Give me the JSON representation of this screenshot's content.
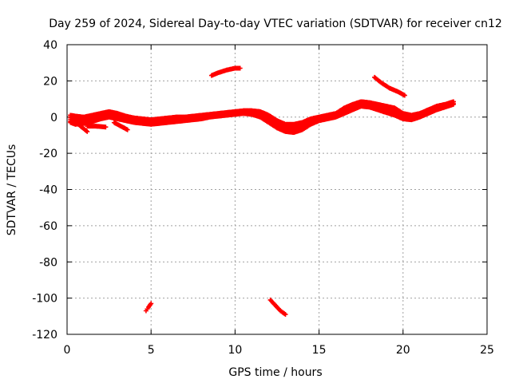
{
  "chart_data": {
    "type": "scatter",
    "title": "Day 259 of 2024, Sidereal Day-to-day VTEC variation (SDTVAR) for receiver cn12",
    "xlabel": "GPS time / hours",
    "ylabel": "SDTVAR / TECUs",
    "xlim": [
      0,
      25
    ],
    "ylim": [
      -120,
      40
    ],
    "xticks": [
      0,
      5,
      10,
      15,
      20,
      25
    ],
    "yticks": [
      -120,
      -100,
      -80,
      -60,
      -40,
      -20,
      0,
      20,
      40
    ],
    "grid": true,
    "marker": "plus",
    "color": "#ff0000",
    "series": [
      {
        "name": "main band upper",
        "points": [
          [
            0.2,
            1
          ],
          [
            0.5,
            0.5
          ],
          [
            1.0,
            0
          ],
          [
            1.5,
            1
          ],
          [
            2.0,
            2
          ],
          [
            2.5,
            3
          ],
          [
            3.0,
            2
          ],
          [
            3.5,
            0.5
          ],
          [
            4.0,
            -0.5
          ],
          [
            4.5,
            -1
          ],
          [
            5.0,
            -1.5
          ],
          [
            5.5,
            -1
          ],
          [
            6.0,
            -0.5
          ],
          [
            6.5,
            0
          ],
          [
            7.0,
            0
          ],
          [
            7.5,
            0.5
          ],
          [
            8.0,
            1
          ],
          [
            8.5,
            1.5
          ],
          [
            9.0,
            2
          ],
          [
            9.5,
            2.5
          ],
          [
            10.0,
            3
          ],
          [
            10.5,
            3.5
          ],
          [
            11.0,
            3.5
          ],
          [
            11.5,
            3
          ],
          [
            12.0,
            1
          ],
          [
            12.5,
            -2
          ],
          [
            13.0,
            -4
          ],
          [
            13.5,
            -4
          ],
          [
            14.0,
            -3
          ],
          [
            14.5,
            -1
          ],
          [
            15.0,
            0
          ],
          [
            15.5,
            1
          ],
          [
            16.0,
            2
          ],
          [
            16.5,
            5
          ],
          [
            17.0,
            7
          ],
          [
            17.5,
            8.5
          ],
          [
            18.0,
            8
          ],
          [
            18.5,
            7
          ],
          [
            19.0,
            6
          ],
          [
            19.5,
            5
          ],
          [
            20.0,
            2
          ],
          [
            20.5,
            1
          ],
          [
            21.0,
            2
          ],
          [
            21.5,
            4
          ],
          [
            22.0,
            6
          ],
          [
            22.5,
            7
          ],
          [
            23.0,
            8.5
          ]
        ]
      },
      {
        "name": "main band lower",
        "points": [
          [
            0.2,
            -3
          ],
          [
            0.5,
            -4
          ],
          [
            1.0,
            -3.5
          ],
          [
            1.5,
            -2.5
          ],
          [
            2.0,
            -1
          ],
          [
            2.5,
            0
          ],
          [
            3.0,
            -1
          ],
          [
            3.5,
            -2
          ],
          [
            4.0,
            -3
          ],
          [
            4.5,
            -3.5
          ],
          [
            5.0,
            -4
          ],
          [
            5.5,
            -3.5
          ],
          [
            6.0,
            -3
          ],
          [
            6.5,
            -2.5
          ],
          [
            7.0,
            -2
          ],
          [
            7.5,
            -1.5
          ],
          [
            8.0,
            -1
          ],
          [
            8.5,
            0
          ],
          [
            9.0,
            0.5
          ],
          [
            9.5,
            1
          ],
          [
            10.0,
            1.5
          ],
          [
            10.5,
            2
          ],
          [
            11.0,
            1.5
          ],
          [
            11.5,
            0
          ],
          [
            12.0,
            -3
          ],
          [
            12.5,
            -6
          ],
          [
            13.0,
            -8
          ],
          [
            13.5,
            -8.5
          ],
          [
            14.0,
            -7
          ],
          [
            14.5,
            -4
          ],
          [
            15.0,
            -2
          ],
          [
            15.5,
            -1
          ],
          [
            16.0,
            0
          ],
          [
            16.5,
            2
          ],
          [
            17.0,
            4
          ],
          [
            17.5,
            6
          ],
          [
            18.0,
            5.5
          ],
          [
            18.5,
            4
          ],
          [
            19.0,
            2.5
          ],
          [
            19.5,
            1
          ],
          [
            20.0,
            -1
          ],
          [
            20.5,
            -1.5
          ],
          [
            21.0,
            0
          ],
          [
            21.5,
            2
          ],
          [
            22.0,
            4
          ],
          [
            22.5,
            5.5
          ],
          [
            23.0,
            7
          ]
        ]
      },
      {
        "name": "early arc 1",
        "points": [
          [
            0.4,
            -2
          ],
          [
            0.8,
            -5
          ],
          [
            1.2,
            -8
          ]
        ]
      },
      {
        "name": "early arc 2",
        "points": [
          [
            1.2,
            -5
          ],
          [
            1.7,
            -5
          ],
          [
            2.3,
            -5.5
          ]
        ]
      },
      {
        "name": "early arc 3",
        "points": [
          [
            2.8,
            -3
          ],
          [
            3.2,
            -5
          ],
          [
            3.6,
            -7
          ]
        ]
      },
      {
        "name": "arc near 9h",
        "points": [
          [
            8.6,
            23
          ],
          [
            9.0,
            24.5
          ],
          [
            9.5,
            26
          ],
          [
            10.0,
            27
          ],
          [
            10.3,
            27
          ]
        ]
      },
      {
        "name": "arc near 19h",
        "points": [
          [
            18.3,
            22
          ],
          [
            18.7,
            19
          ],
          [
            19.2,
            16
          ],
          [
            19.7,
            14
          ],
          [
            20.1,
            12
          ]
        ]
      },
      {
        "name": "arc near 5h",
        "points": [
          [
            4.7,
            -107
          ],
          [
            4.85,
            -105
          ],
          [
            5.0,
            -103
          ]
        ]
      },
      {
        "name": "arc near 12.5h",
        "points": [
          [
            12.1,
            -101
          ],
          [
            12.4,
            -104
          ],
          [
            12.7,
            -107
          ],
          [
            13.0,
            -109
          ]
        ]
      }
    ]
  }
}
